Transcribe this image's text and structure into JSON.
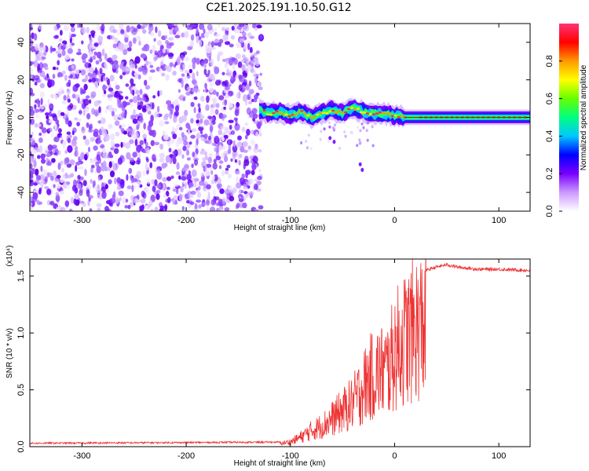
{
  "title": "C2E1.2025.191.10.50.G12",
  "chart_data": [
    {
      "type": "heatmap",
      "xlabel": "Height of straight line (km)",
      "ylabel": "Frequency (Hz)",
      "xlim": [
        -350,
        130
      ],
      "ylim": [
        -50,
        50
      ],
      "xticks": [
        -300,
        -200,
        -100,
        0,
        100
      ],
      "xtick_labels": [
        "-300",
        "-200",
        "-100",
        "0",
        "100"
      ],
      "yticks": [
        -40,
        -20,
        0,
        20,
        40
      ],
      "ytick_labels": [
        "-40",
        "-20",
        "0",
        "20",
        "40"
      ],
      "colorbar": {
        "label": "Normalized spectral amplitude",
        "range": [
          0,
          1
        ],
        "ticks": [
          0.0,
          0.2,
          0.4,
          0.6,
          0.8
        ],
        "tick_labels": [
          "0.0",
          "0.2",
          "0.4",
          "0.6",
          "0.8"
        ],
        "colormap": [
          "#ffffff",
          "#cc99ff",
          "#7a00ff",
          "#0000ff",
          "#00c8ff",
          "#00ff80",
          "#66ff00",
          "#ffff00",
          "#ff9900",
          "#ff0000",
          "#ff3377"
        ]
      },
      "ridge": {
        "x": [
          -130,
          -120,
          -110,
          -100,
          -90,
          -80,
          -70,
          -60,
          -50,
          -40,
          -30,
          -20,
          -10,
          0,
          10,
          130
        ],
        "y": [
          4,
          2,
          3,
          1,
          3,
          0,
          2,
          4,
          2,
          5,
          3,
          2,
          2,
          1,
          0,
          0
        ]
      },
      "grid": false
    },
    {
      "type": "line",
      "xlabel": "Height of straight line (km)",
      "ylabel": "SNR (10 * v/v)",
      "scale_note": "(x10⁴)",
      "xlim": [
        -350,
        130
      ],
      "ylim": [
        0,
        1.65
      ],
      "xticks": [
        -300,
        -200,
        -100,
        0,
        100
      ],
      "xtick_labels": [
        "-300",
        "-200",
        "-100",
        "0",
        "100"
      ],
      "yticks": [
        0,
        0.5,
        1.0,
        1.5
      ],
      "ytick_labels": [
        "0.0",
        "0.5",
        "1.0",
        "1.5"
      ],
      "color": "#ee3333",
      "envelope": {
        "x": [
          -350,
          -110,
          -100,
          -90,
          -80,
          -70,
          -60,
          -50,
          -40,
          -35,
          -30,
          -25,
          -20,
          -15,
          -10,
          -5,
          0,
          10,
          20,
          30,
          40,
          50,
          60,
          80,
          100,
          130
        ],
        "y": [
          0.03,
          0.04,
          0.06,
          0.12,
          0.2,
          0.26,
          0.35,
          0.45,
          0.55,
          0.65,
          0.75,
          0.85,
          0.9,
          0.95,
          0.95,
          1.0,
          1.2,
          1.35,
          1.48,
          1.55,
          1.58,
          1.6,
          1.58,
          1.56,
          1.56,
          1.55
        ]
      },
      "grid": false
    }
  ]
}
